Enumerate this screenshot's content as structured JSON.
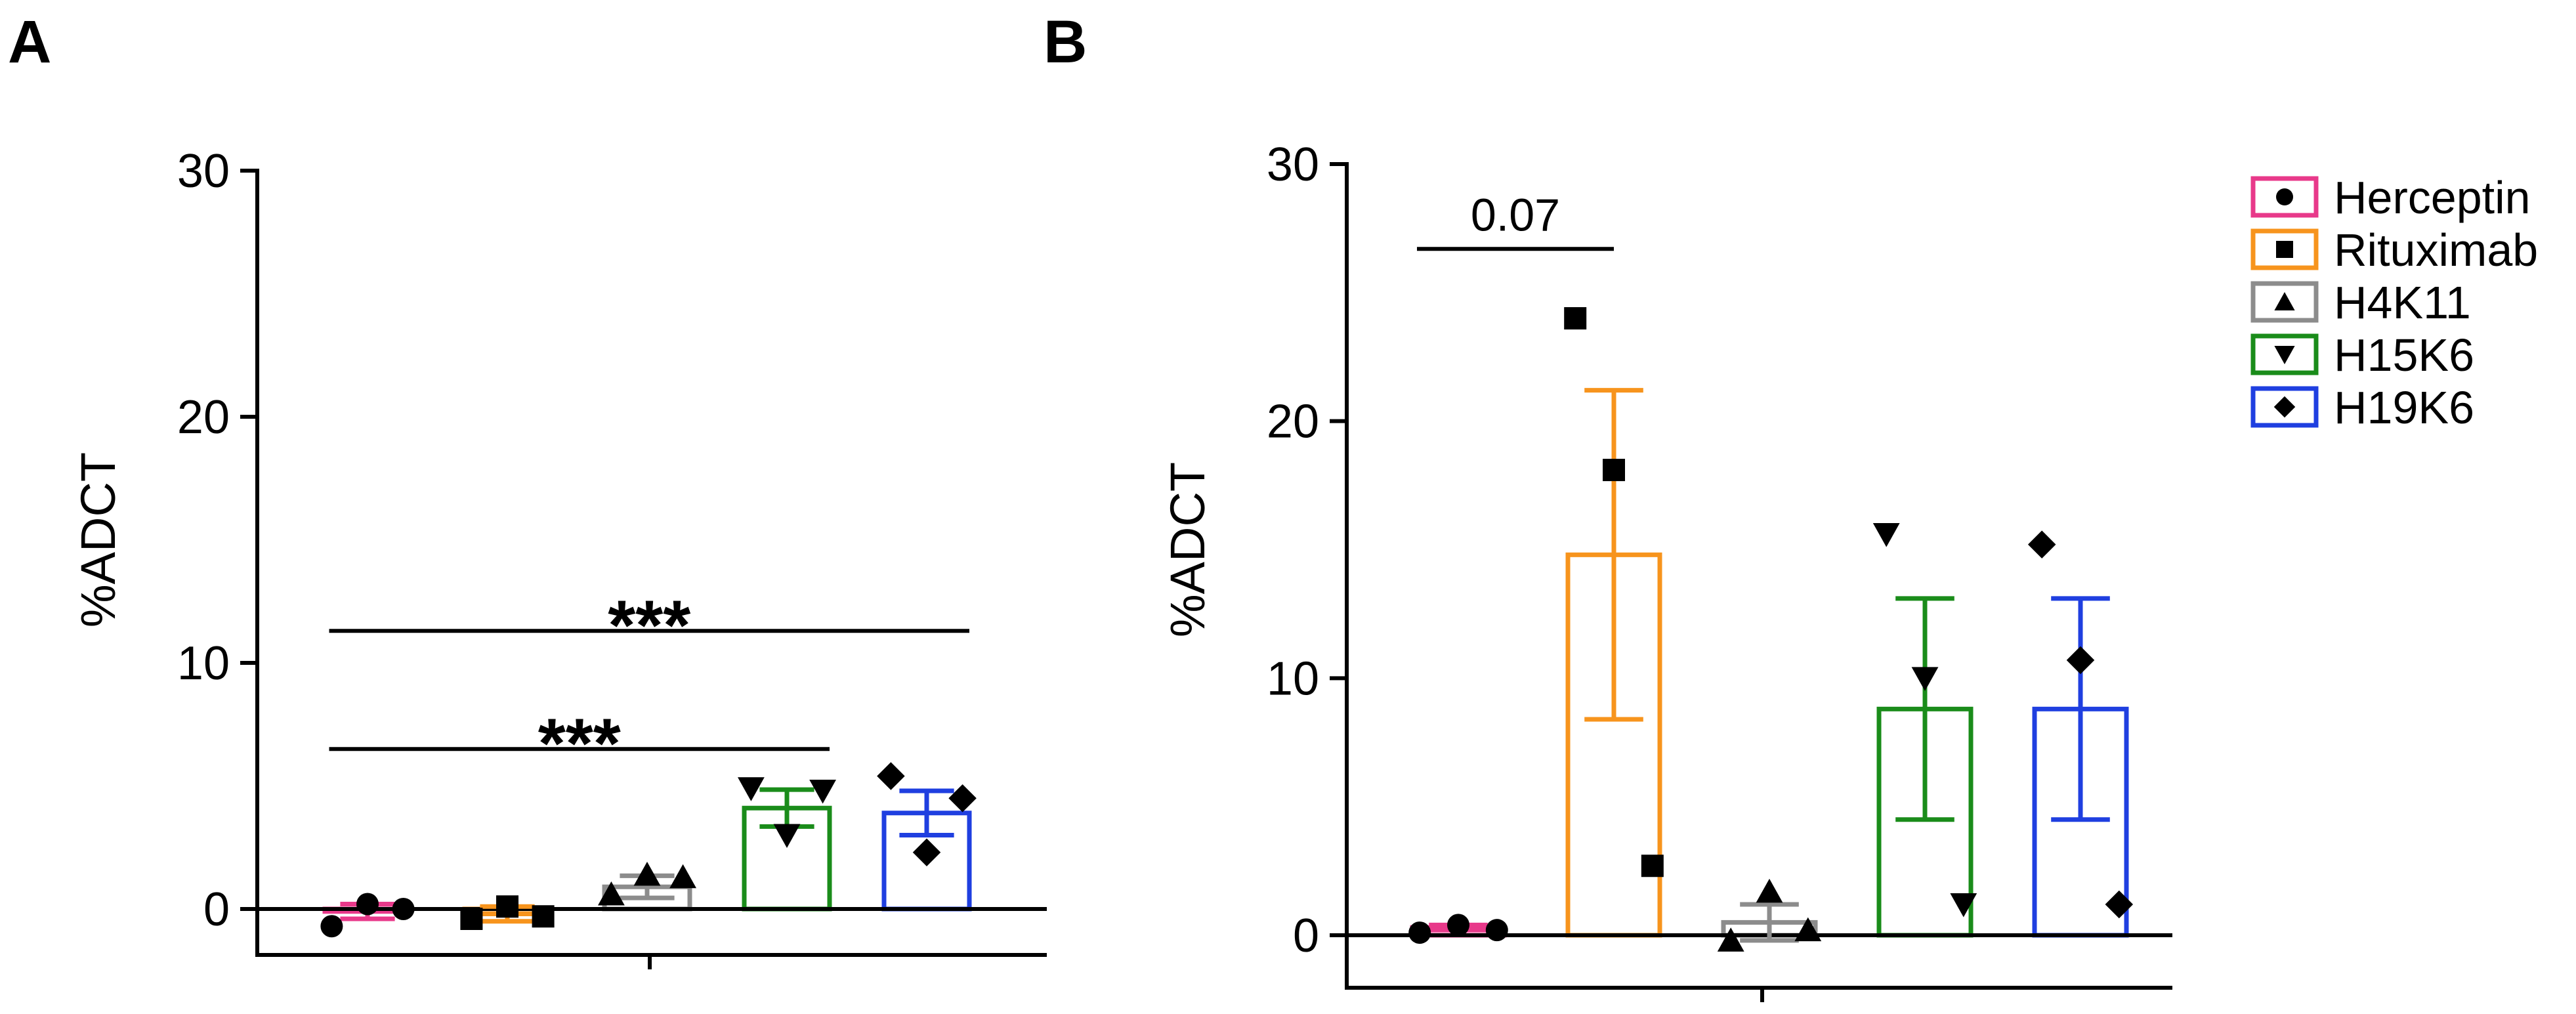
{
  "chart_data": [
    {
      "panel": "A",
      "type": "bar",
      "ylabel": "%ADCT",
      "ylim": [
        -2,
        30
      ],
      "yticks": [
        0,
        10,
        20,
        30
      ],
      "categories": [
        "Herceptin",
        "Rituximab",
        "H4K11",
        "H15K6",
        "H19K6"
      ],
      "series": [
        {
          "name": "Herceptin",
          "color": "#e8398a",
          "marker": "circle",
          "mean": -0.1,
          "sem": 0.3,
          "points": [
            -0.7,
            0.2,
            0.0
          ]
        },
        {
          "name": "Rituximab",
          "color": "#f7941d",
          "marker": "square",
          "mean": -0.2,
          "sem": 0.3,
          "points": [
            -0.4,
            0.1,
            -0.3
          ]
        },
        {
          "name": "H4K11",
          "color": "#8c8c8c",
          "marker": "triangle-up",
          "mean": 0.9,
          "sem": 0.45,
          "points": [
            0.6,
            1.4,
            1.3
          ]
        },
        {
          "name": "H15K6",
          "color": "#1a8c1a",
          "marker": "triangle-down",
          "mean": 4.1,
          "sem": 0.75,
          "points": [
            4.9,
            3.0,
            4.8
          ]
        },
        {
          "name": "H19K6",
          "color": "#1f3fe0",
          "marker": "diamond",
          "mean": 3.9,
          "sem": 0.9,
          "points": [
            5.4,
            2.3,
            4.5
          ]
        }
      ],
      "annotations": [
        {
          "label": "***",
          "from": "Herceptin",
          "to": "H15K6",
          "y": 6.5
        },
        {
          "label": "***",
          "from": "Herceptin",
          "to": "H19K6",
          "y": 11.3
        }
      ]
    },
    {
      "panel": "B",
      "type": "bar",
      "ylabel": "%ADCT",
      "ylim": [
        -2,
        30
      ],
      "yticks": [
        0,
        10,
        20,
        30
      ],
      "categories": [
        "Herceptin",
        "Rituximab",
        "H4K11",
        "H15K6",
        "H19K6"
      ],
      "series": [
        {
          "name": "Herceptin",
          "color": "#e8398a",
          "marker": "circle",
          "mean": 0.3,
          "sem": 0.1,
          "points": [
            0.1,
            0.4,
            0.2
          ]
        },
        {
          "name": "Rituximab",
          "color": "#f7941d",
          "marker": "square",
          "mean": 14.8,
          "sem": 6.4,
          "points": [
            24.0,
            18.1,
            2.7
          ]
        },
        {
          "name": "H4K11",
          "color": "#8c8c8c",
          "marker": "triangle-up",
          "mean": 0.5,
          "sem": 0.7,
          "points": [
            -0.2,
            1.7,
            0.2
          ]
        },
        {
          "name": "H15K6",
          "color": "#1a8c1a",
          "marker": "triangle-down",
          "mean": 8.8,
          "sem": 4.3,
          "points": [
            15.6,
            10.0,
            1.2
          ]
        },
        {
          "name": "H19K6",
          "color": "#1f3fe0",
          "marker": "diamond",
          "mean": 8.8,
          "sem": 4.3,
          "points": [
            15.2,
            10.7,
            1.2
          ]
        }
      ],
      "annotations": [
        {
          "label": "0.07",
          "from": "Herceptin",
          "to": "Rituximab",
          "y": 26.7
        }
      ]
    }
  ],
  "legend": [
    {
      "label": "Herceptin",
      "color": "#e8398a",
      "marker": "circle"
    },
    {
      "label": "Rituximab",
      "color": "#f7941d",
      "marker": "square"
    },
    {
      "label": "H4K11",
      "color": "#8c8c8c",
      "marker": "triangle-up"
    },
    {
      "label": "H15K6",
      "color": "#1a8c1a",
      "marker": "triangle-down"
    },
    {
      "label": "H19K6",
      "color": "#1f3fe0",
      "marker": "diamond"
    }
  ]
}
